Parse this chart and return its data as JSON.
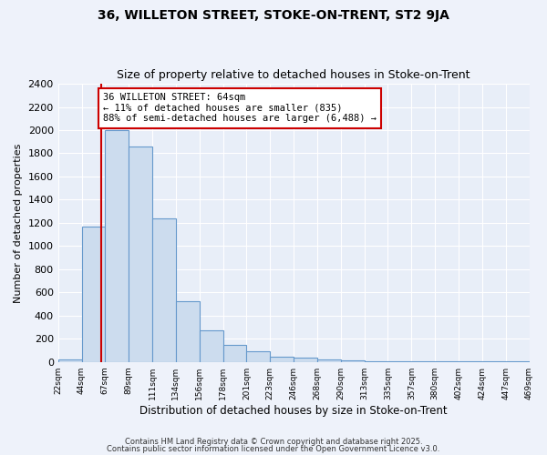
{
  "title1": "36, WILLETON STREET, STOKE-ON-TRENT, ST2 9JA",
  "title2": "Size of property relative to detached houses in Stoke-on-Trent",
  "xlabel": "Distribution of detached houses by size in Stoke-on-Trent",
  "ylabel": "Number of detached properties",
  "bar_color": "#ccdcee",
  "bar_edge_color": "#6699cc",
  "background_color": "#e8eef8",
  "grid_color": "#ffffff",
  "tick_labels": [
    "22sqm",
    "44sqm",
    "67sqm",
    "89sqm",
    "111sqm",
    "134sqm",
    "156sqm",
    "178sqm",
    "201sqm",
    "223sqm",
    "246sqm",
    "268sqm",
    "290sqm",
    "313sqm",
    "335sqm",
    "357sqm",
    "380sqm",
    "402sqm",
    "424sqm",
    "447sqm",
    "469sqm"
  ],
  "bar_heights": [
    25,
    1170,
    2000,
    1860,
    1240,
    520,
    275,
    150,
    90,
    45,
    40,
    20,
    10,
    5,
    5,
    5,
    3,
    3,
    3,
    3
  ],
  "vline_pos": 1.82,
  "vline_color": "#cc0000",
  "annotation_text": "36 WILLETON STREET: 64sqm\n← 11% of detached houses are smaller (835)\n88% of semi-detached houses are larger (6,488) →",
  "annotation_box_color": "#ffffff",
  "annotation_box_edge": "#cc0000",
  "ylim": [
    0,
    2400
  ],
  "yticks": [
    0,
    200,
    400,
    600,
    800,
    1000,
    1200,
    1400,
    1600,
    1800,
    2000,
    2200,
    2400
  ],
  "footer1": "Contains HM Land Registry data © Crown copyright and database right 2025.",
  "footer2": "Contains public sector information licensed under the Open Government Licence v3.0.",
  "fig_facecolor": "#eef2fa"
}
